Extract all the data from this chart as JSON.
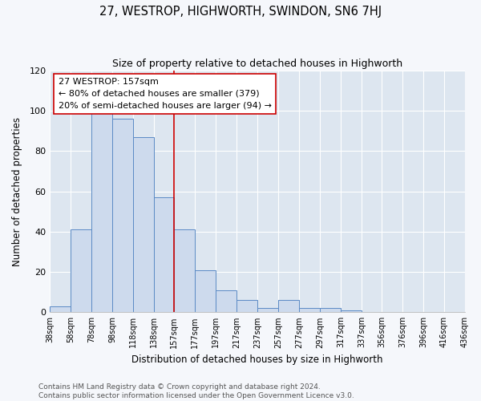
{
  "title": "27, WESTROP, HIGHWORTH, SWINDON, SN6 7HJ",
  "subtitle": "Size of property relative to detached houses in Highworth",
  "xlabel": "Distribution of detached houses by size in Highworth",
  "ylabel": "Number of detached properties",
  "bar_edges": [
    38,
    58,
    78,
    98,
    118,
    138,
    157,
    177,
    197,
    217,
    237,
    257,
    277,
    297,
    317,
    337,
    356,
    376,
    396,
    416,
    436
  ],
  "bar_heights": [
    3,
    41,
    99,
    96,
    87,
    57,
    41,
    21,
    11,
    6,
    2,
    6,
    2,
    2,
    1,
    0,
    0,
    0,
    0,
    0
  ],
  "bar_color": "#cddaed",
  "bar_edge_color": "#5b8ac5",
  "red_line_x": 157,
  "annotation_line1": "27 WESTROP: 157sqm",
  "annotation_line2": "← 80% of detached houses are smaller (379)",
  "annotation_line3": "20% of semi-detached houses are larger (94) →",
  "annotation_box_facecolor": "#ffffff",
  "annotation_box_edgecolor": "#cc0000",
  "ylim": [
    0,
    120
  ],
  "yticks": [
    0,
    20,
    40,
    60,
    80,
    100,
    120
  ],
  "axes_facecolor": "#dde6f0",
  "figure_facecolor": "#f5f7fb",
  "grid_color": "#ffffff",
  "footer_line1": "Contains HM Land Registry data © Crown copyright and database right 2024.",
  "footer_line2": "Contains public sector information licensed under the Open Government Licence v3.0."
}
